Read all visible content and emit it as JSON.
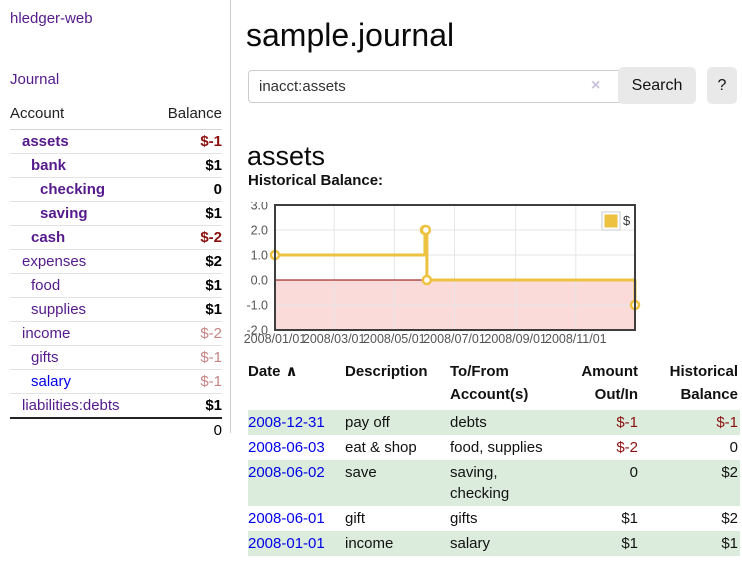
{
  "sidebar": {
    "app_link": "hledger-web",
    "journal_link": "Journal",
    "accounts": {
      "col_account": "Account",
      "col_balance": "Balance",
      "rows": [
        {
          "name": "assets",
          "level": 0,
          "in_filter": true,
          "balance": "$-1",
          "balance_class": "neg"
        },
        {
          "name": "bank",
          "level": 1,
          "in_filter": true,
          "balance": "$1",
          "balance_class": "pos"
        },
        {
          "name": "checking",
          "level": 2,
          "in_filter": true,
          "balance": "0",
          "balance_class": "pos"
        },
        {
          "name": "saving",
          "level": 2,
          "in_filter": true,
          "balance": "$1",
          "balance_class": "pos"
        },
        {
          "name": "cash",
          "level": 1,
          "in_filter": true,
          "balance": "$-2",
          "balance_class": "neg"
        },
        {
          "name": "expenses",
          "level": 0,
          "in_filter": false,
          "balance": "$2",
          "balance_class": "pos"
        },
        {
          "name": "food",
          "level": 1,
          "in_filter": false,
          "balance": "$1",
          "balance_class": "pos"
        },
        {
          "name": "supplies",
          "level": 1,
          "in_filter": false,
          "balance": "$1",
          "balance_class": "pos"
        },
        {
          "name": "income",
          "level": 0,
          "in_filter": false,
          "balance": "$-2",
          "balance_class": "dim"
        },
        {
          "name": "gifts",
          "level": 1,
          "in_filter": false,
          "balance": "$-1",
          "balance_class": "dim"
        },
        {
          "name": "salary",
          "level": 1,
          "in_filter": false,
          "unvisited": true,
          "balance": "$-1",
          "balance_class": "dim"
        },
        {
          "name": "liabilities:debts",
          "level": 0,
          "in_filter": false,
          "balance": "$1",
          "balance_class": "pos"
        }
      ],
      "total": "0"
    }
  },
  "main": {
    "title": "sample.journal",
    "search": {
      "value": "inacct:assets",
      "clear": "×",
      "submit": "Search",
      "help": "?"
    },
    "heading": "assets",
    "chart_label": "Historical Balance:"
  },
  "chart_data": {
    "type": "line",
    "title": "Historical Balance of assets",
    "series": [
      {
        "name": "$",
        "color": "#edc240",
        "step": true,
        "points": [
          [
            "2008-01-01",
            1
          ],
          [
            "2008-06-01",
            2
          ],
          [
            "2008-06-02",
            2
          ],
          [
            "2008-06-03",
            0
          ],
          [
            "2008-12-31",
            -1
          ]
        ]
      }
    ],
    "xrange": [
      "2008-01-01",
      "2008-12-31"
    ],
    "ylim": [
      -2,
      3
    ],
    "xticks": [
      "2008/01/01",
      "2008/03/01",
      "2008/05/01",
      "2008/07/01",
      "2008/09/01",
      "2008/11/01"
    ],
    "yticks": [
      3.0,
      2.0,
      1.0,
      0.0,
      -1.0,
      -2.0
    ],
    "legend": {
      "label": "$",
      "position": "top-right"
    },
    "grid": true,
    "negative_region_fill": "#fbdada",
    "zero_line_color": "#8b0000"
  },
  "transactions": {
    "sort_icon": "∧",
    "headers": [
      {
        "line1": "Date",
        "line2": "",
        "sortable": true
      },
      {
        "line1": "Description",
        "line2": ""
      },
      {
        "line1": "To/From",
        "line2": "Account(s)"
      },
      {
        "line1": "Amount",
        "line2": "Out/In",
        "align": "right"
      },
      {
        "line1": "Historical",
        "line2": "Balance",
        "align": "right"
      }
    ],
    "rows": [
      {
        "date": "2008-12-31",
        "description": "pay off",
        "accounts": "debts",
        "amount": "$-1",
        "amount_negative": true,
        "balance": "$-1",
        "balance_negative": true
      },
      {
        "date": "2008-06-03",
        "description": "eat & shop",
        "accounts": "food, supplies",
        "amount": "$-2",
        "amount_negative": true,
        "balance": "0",
        "balance_negative": false
      },
      {
        "date": "2008-06-02",
        "description": "save",
        "accounts": "saving, checking",
        "amount": "0",
        "amount_negative": false,
        "balance": "$2",
        "balance_negative": false
      },
      {
        "date": "2008-06-01",
        "description": "gift",
        "accounts": "gifts",
        "amount": "$1",
        "amount_negative": false,
        "balance": "$2",
        "balance_negative": false
      },
      {
        "date": "2008-01-01",
        "description": "income",
        "accounts": "salary",
        "amount": "$1",
        "amount_negative": false,
        "balance": "$1",
        "balance_negative": false
      }
    ]
  }
}
